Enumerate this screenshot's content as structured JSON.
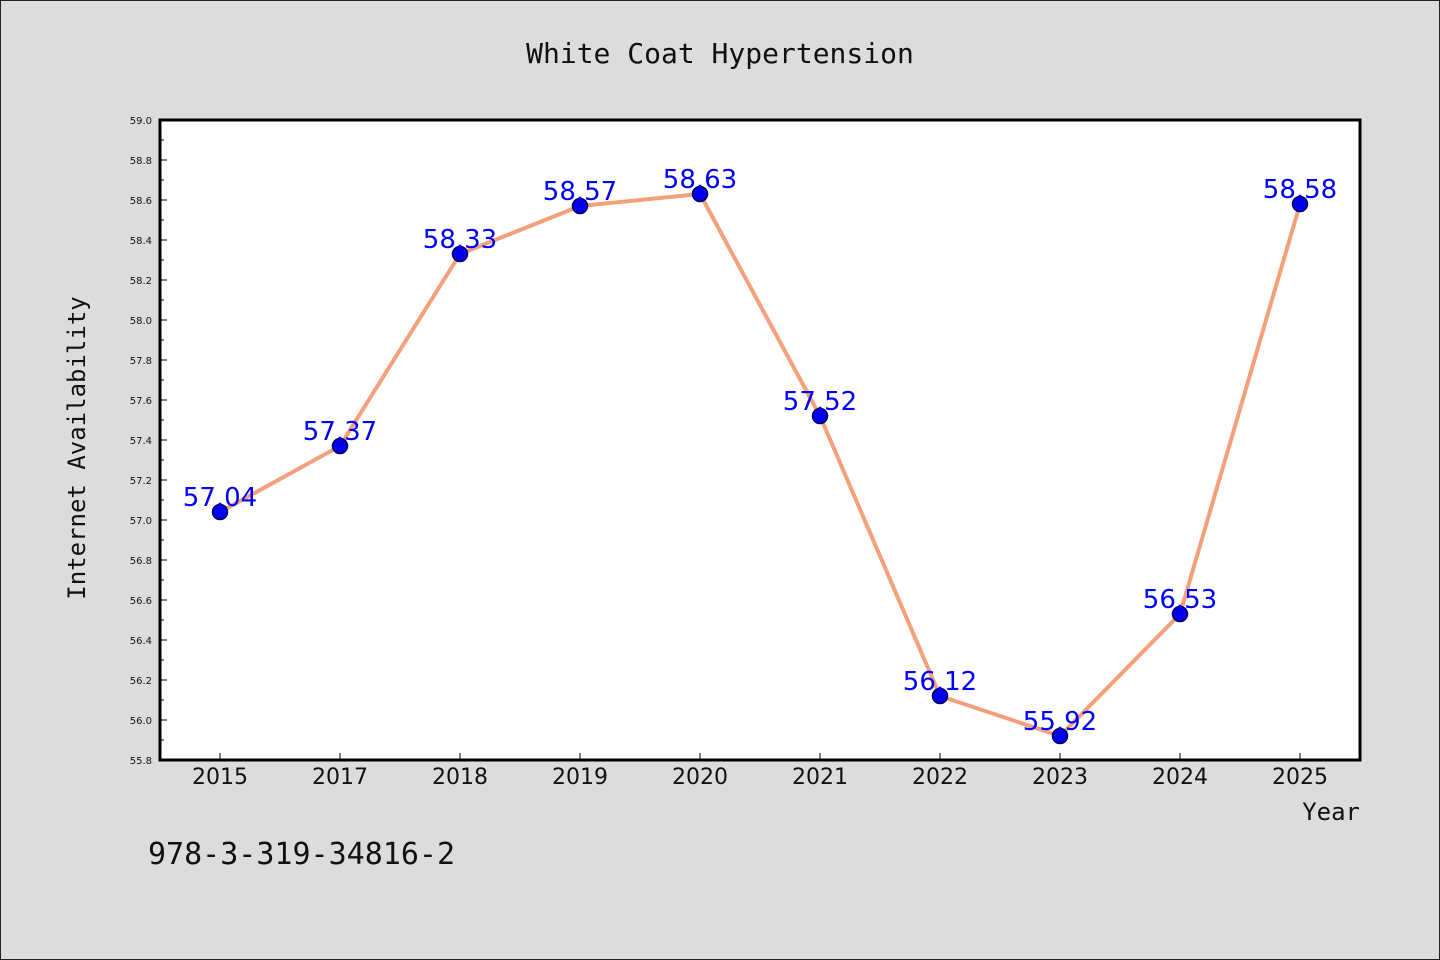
{
  "chart_data": {
    "type": "line",
    "title": "White Coat Hypertension",
    "xlabel": "Year",
    "ylabel": "Internet Availability",
    "categories": [
      "2015",
      "2017",
      "2018",
      "2019",
      "2020",
      "2021",
      "2022",
      "2023",
      "2024",
      "2025"
    ],
    "series": [
      {
        "values": [
          57.04,
          57.37,
          58.33,
          58.57,
          58.63,
          57.52,
          56.12,
          55.92,
          56.53,
          58.58
        ],
        "labels": [
          "57.04",
          "57.37",
          "58.33",
          "58.57",
          "58.63",
          "57.52",
          "56.12",
          "55.92",
          "56.53",
          "58.58"
        ]
      }
    ],
    "ylim": [
      55.8,
      59.0
    ],
    "yticks": [
      "55.8",
      "56.0",
      "56.2",
      "56.4",
      "56.6",
      "56.8",
      "57.0",
      "57.2",
      "57.4",
      "57.6",
      "57.8",
      "58.0",
      "58.2",
      "58.4",
      "58.6",
      "58.8",
      "59.0"
    ],
    "grid": false,
    "colors": {
      "line": "#f4a07a",
      "marker_fill": "#0000ee",
      "marker_edge": "#00005a",
      "data_label": "#0000ff",
      "background": "#dcdcdc",
      "plot_background": "#ffffff"
    }
  },
  "footer": {
    "text": "978-3-319-34816-2"
  }
}
